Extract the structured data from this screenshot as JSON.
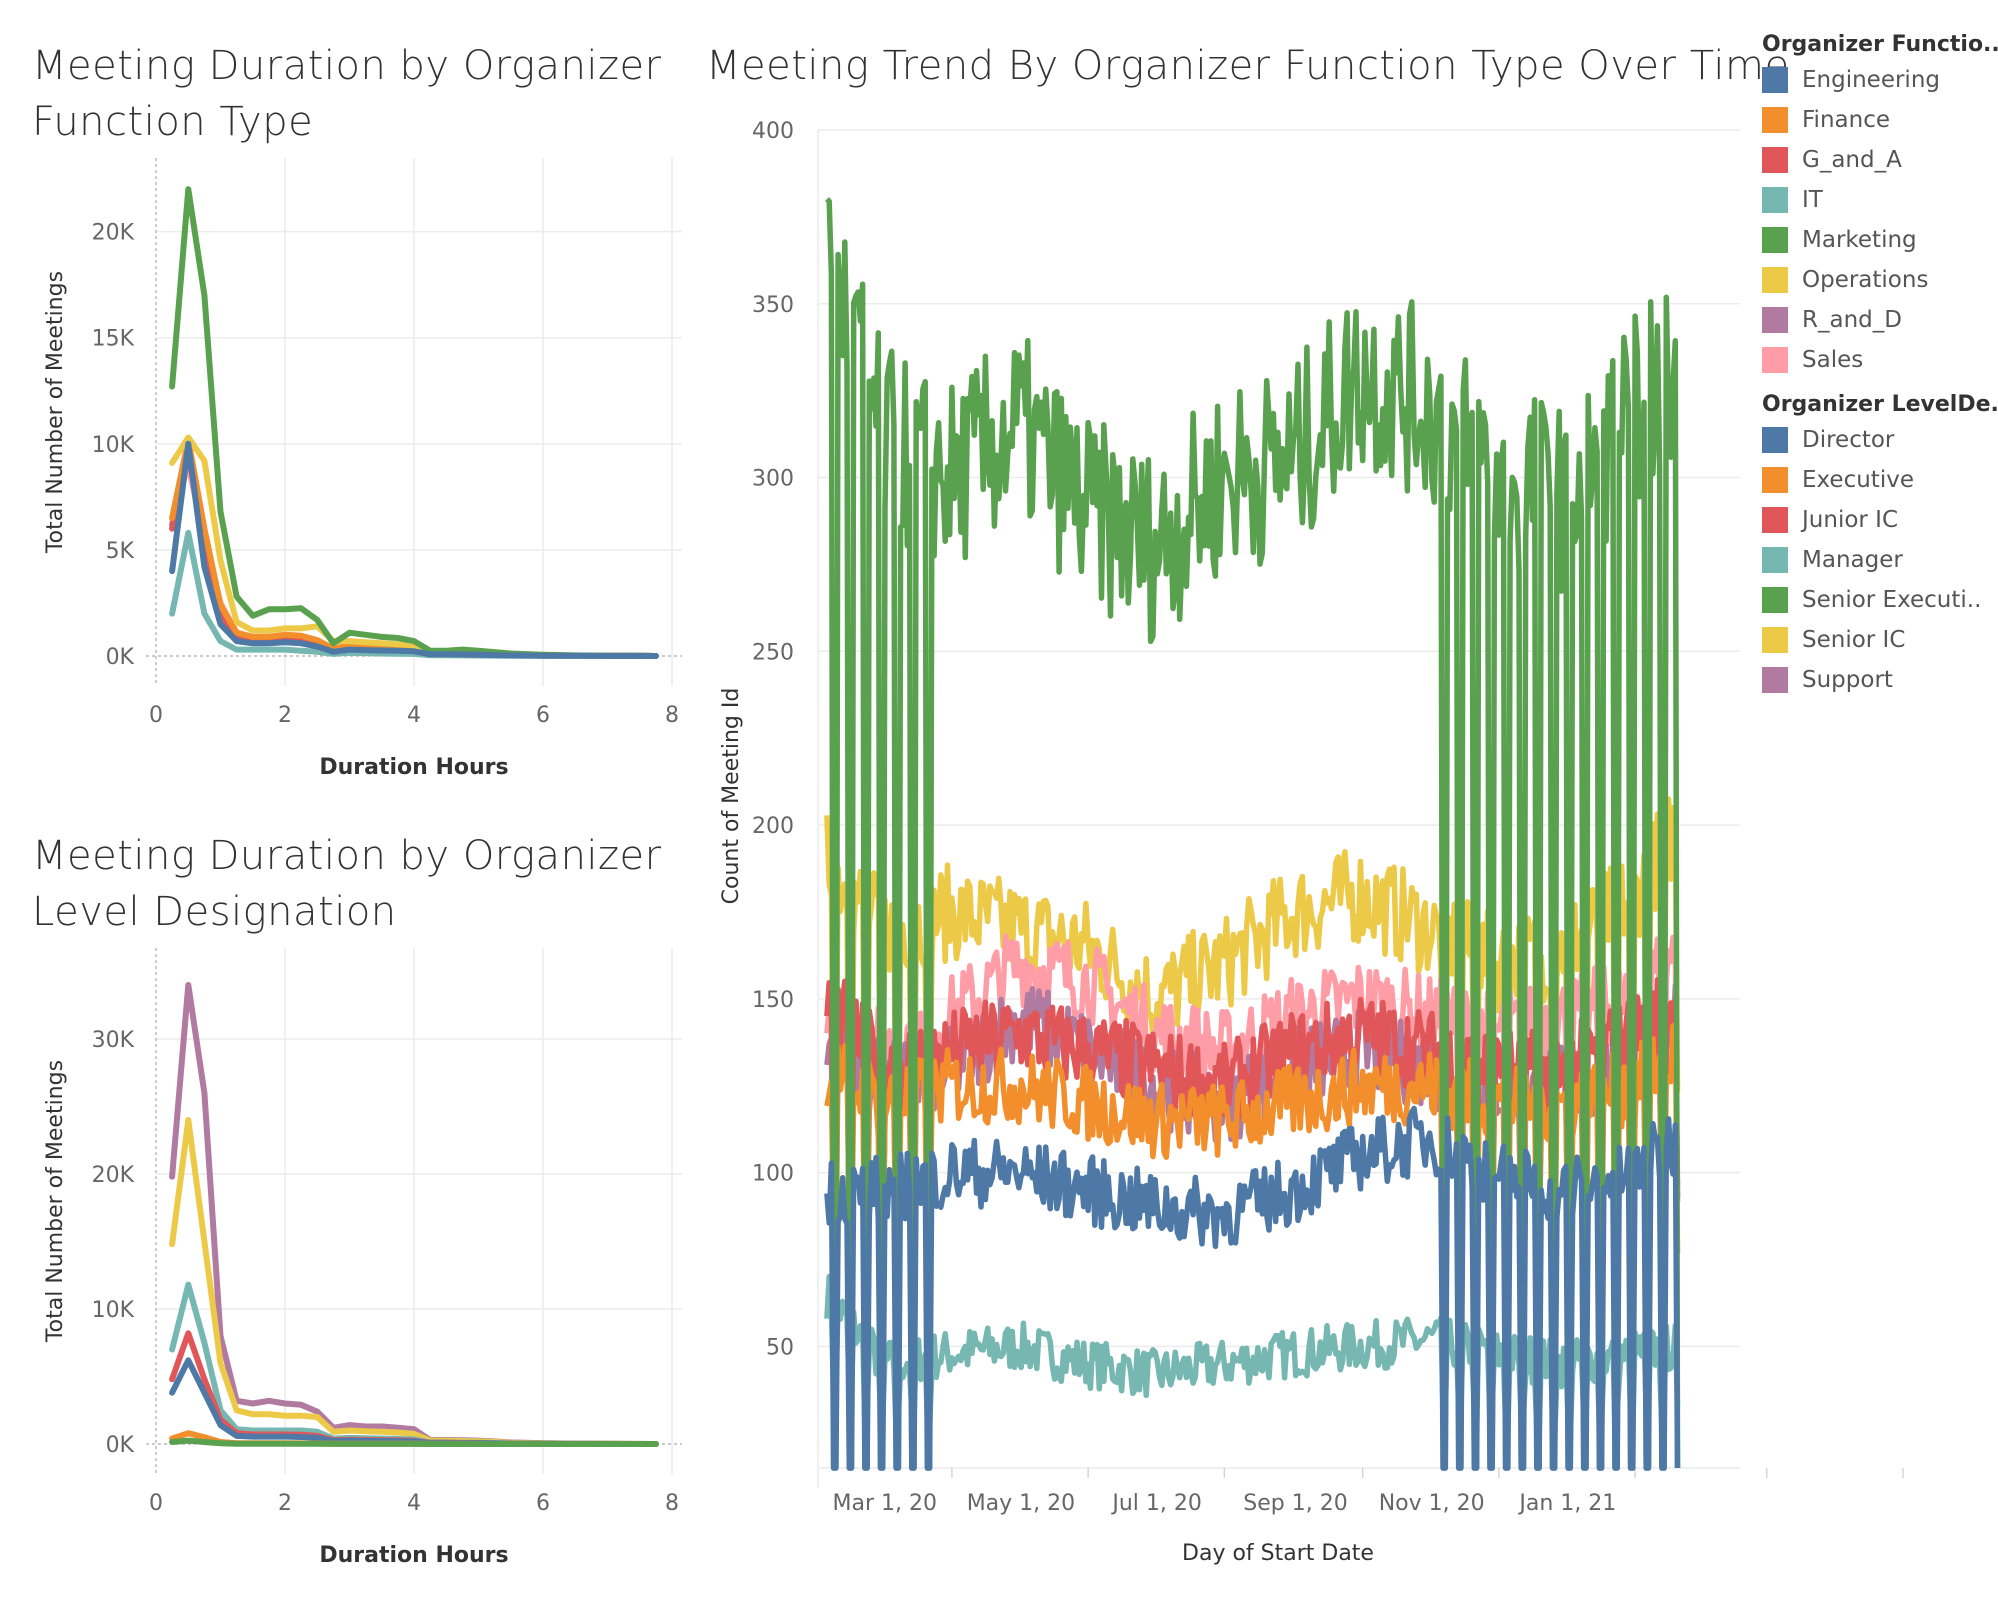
{
  "titles": {
    "function_chart": "Meeting Duration by Organizer Function Type",
    "level_chart": "Meeting Duration by Organizer Level Designation",
    "trend_chart": "Meeting Trend By Organizer Function Type Over Time"
  },
  "legends": {
    "function": {
      "title": "Organizer Functio..",
      "items": [
        {
          "label": "Engineering",
          "color": "#4e79a7"
        },
        {
          "label": "Finance",
          "color": "#f28e2b"
        },
        {
          "label": "G_and_A",
          "color": "#e15759"
        },
        {
          "label": "IT",
          "color": "#76b7b2"
        },
        {
          "label": "Marketing",
          "color": "#59a14f"
        },
        {
          "label": "Operations",
          "color": "#edc948"
        },
        {
          "label": "R_and_D",
          "color": "#b07aa1"
        },
        {
          "label": "Sales",
          "color": "#ff9da7"
        }
      ]
    },
    "level": {
      "title": "Organizer LevelDe..",
      "items": [
        {
          "label": "Director",
          "color": "#4e79a7"
        },
        {
          "label": "Executive",
          "color": "#f28e2b"
        },
        {
          "label": "Junior IC",
          "color": "#e15759"
        },
        {
          "label": "Manager",
          "color": "#76b7b2"
        },
        {
          "label": "Senior Executi..",
          "color": "#59a14f"
        },
        {
          "label": "Senior IC",
          "color": "#edc948"
        },
        {
          "label": "Support",
          "color": "#b07aa1"
        }
      ]
    }
  },
  "chart_data": [
    {
      "type": "line",
      "title": "Meeting Duration by Organizer Function Type",
      "xlabel": "Duration Hours",
      "ylabel": "Total Number of Meetings",
      "xlim": [
        0,
        8
      ],
      "ylim": [
        0,
        23000
      ],
      "x_ticks": [
        0,
        2,
        4,
        6,
        8
      ],
      "x_tick_labels": [
        "0",
        "2",
        "4",
        "6",
        "8"
      ],
      "y_ticks": [
        0,
        5000,
        10000,
        15000,
        20000
      ],
      "y_tick_labels": [
        "0K",
        "5K",
        "10K",
        "15K",
        "20K"
      ],
      "grid": true,
      "x": [
        0.25,
        0.5,
        0.75,
        1,
        1.25,
        1.5,
        1.75,
        2,
        2.25,
        2.5,
        2.75,
        3,
        3.25,
        3.5,
        3.75,
        4,
        4.25,
        4.5,
        4.75,
        5,
        5.5,
        6,
        6.5,
        7,
        7.5,
        7.75
      ],
      "series": [
        {
          "name": "Sales",
          "color": "#ff9da7",
          "values": [
            6500,
            9000,
            5500,
            2500,
            1100,
            900,
            900,
            1000,
            900,
            700,
            350,
            500,
            450,
            420,
            400,
            350,
            150,
            150,
            120,
            100,
            60,
            30,
            20,
            10,
            5,
            0
          ]
        },
        {
          "name": "R_and_D",
          "color": "#b07aa1",
          "values": [
            6200,
            9800,
            5800,
            2200,
            1000,
            800,
            800,
            850,
            800,
            650,
            300,
            420,
            400,
            380,
            350,
            300,
            120,
            120,
            100,
            80,
            50,
            30,
            15,
            10,
            5,
            0
          ]
        },
        {
          "name": "G_and_A",
          "color": "#e15759",
          "values": [
            6000,
            9500,
            5500,
            2000,
            900,
            700,
            700,
            800,
            750,
            600,
            280,
            400,
            380,
            350,
            330,
            280,
            110,
            110,
            90,
            70,
            40,
            20,
            10,
            5,
            3,
            0
          ]
        },
        {
          "name": "Finance",
          "color": "#f28e2b",
          "values": [
            6500,
            10200,
            6000,
            2400,
            1100,
            900,
            900,
            1000,
            950,
            750,
            350,
            500,
            470,
            440,
            420,
            360,
            140,
            140,
            110,
            90,
            50,
            25,
            15,
            10,
            5,
            0
          ]
        },
        {
          "name": "IT",
          "color": "#76b7b2",
          "values": [
            2000,
            5800,
            2000,
            700,
            300,
            300,
            300,
            300,
            250,
            200,
            100,
            150,
            130,
            120,
            110,
            100,
            40,
            40,
            30,
            25,
            15,
            10,
            5,
            3,
            2,
            0
          ]
        },
        {
          "name": "Operations",
          "color": "#edc948",
          "values": [
            9100,
            10300,
            9200,
            4500,
            1600,
            1200,
            1200,
            1300,
            1300,
            1400,
            700,
            700,
            650,
            600,
            550,
            500,
            200,
            200,
            180,
            150,
            80,
            40,
            20,
            10,
            5,
            0
          ]
        },
        {
          "name": "Marketing",
          "color": "#59a14f",
          "values": [
            12700,
            22000,
            17000,
            6800,
            2800,
            1900,
            2200,
            2200,
            2250,
            1700,
            600,
            1100,
            1000,
            900,
            850,
            700,
            250,
            250,
            300,
            250,
            120,
            60,
            30,
            15,
            8,
            0
          ]
        },
        {
          "name": "Engineering",
          "color": "#4e79a7",
          "values": [
            4000,
            10000,
            4200,
            1500,
            700,
            600,
            600,
            650,
            600,
            450,
            200,
            300,
            280,
            260,
            250,
            220,
            80,
            80,
            70,
            60,
            30,
            15,
            8,
            5,
            3,
            0
          ]
        }
      ]
    },
    {
      "type": "line",
      "title": "Meeting Duration by Organizer Level Designation",
      "xlabel": "Duration Hours",
      "ylabel": "Total Number of Meetings",
      "xlim": [
        0,
        8
      ],
      "ylim": [
        0,
        36000
      ],
      "x_ticks": [
        0,
        2,
        4,
        6,
        8
      ],
      "x_tick_labels": [
        "0",
        "2",
        "4",
        "6",
        "8"
      ],
      "y_ticks": [
        0,
        10000,
        20000,
        30000
      ],
      "y_tick_labels": [
        "0K",
        "10K",
        "20K",
        "30K"
      ],
      "grid": true,
      "x": [
        0.25,
        0.5,
        0.75,
        1,
        1.25,
        1.5,
        1.75,
        2,
        2.25,
        2.5,
        2.75,
        3,
        3.25,
        3.5,
        3.75,
        4,
        4.25,
        4.5,
        4.75,
        5,
        5.5,
        6,
        6.5,
        7,
        7.5,
        7.75
      ],
      "series": [
        {
          "name": "Support",
          "color": "#b07aa1",
          "values": [
            19800,
            34000,
            26000,
            8000,
            3200,
            3000,
            3200,
            3000,
            2900,
            2400,
            1200,
            1400,
            1300,
            1300,
            1200,
            1100,
            300,
            300,
            280,
            250,
            120,
            60,
            30,
            15,
            8,
            0
          ]
        },
        {
          "name": "Senior IC",
          "color": "#edc948",
          "values": [
            14800,
            24000,
            15000,
            6000,
            2500,
            2200,
            2200,
            2100,
            2100,
            2000,
            900,
            1000,
            950,
            900,
            850,
            750,
            250,
            250,
            220,
            200,
            100,
            50,
            25,
            12,
            6,
            0
          ]
        },
        {
          "name": "Manager",
          "color": "#76b7b2",
          "values": [
            7000,
            11800,
            7500,
            2500,
            1100,
            1000,
            1000,
            1000,
            1000,
            900,
            400,
            450,
            420,
            400,
            380,
            330,
            120,
            120,
            100,
            90,
            45,
            20,
            10,
            5,
            3,
            0
          ]
        },
        {
          "name": "Junior IC",
          "color": "#e15759",
          "values": [
            4800,
            8200,
            4800,
            1800,
            800,
            700,
            700,
            700,
            680,
            600,
            280,
            320,
            300,
            280,
            270,
            240,
            90,
            90,
            75,
            65,
            30,
            15,
            8,
            4,
            2,
            0
          ]
        },
        {
          "name": "Director",
          "color": "#4e79a7",
          "values": [
            3800,
            6200,
            3800,
            1400,
            600,
            550,
            550,
            550,
            520,
            460,
            220,
            250,
            230,
            220,
            210,
            190,
            70,
            70,
            60,
            50,
            25,
            12,
            6,
            3,
            2,
            0
          ]
        },
        {
          "name": "Executive",
          "color": "#f28e2b",
          "values": [
            400,
            800,
            500,
            150,
            60,
            50,
            50,
            50,
            45,
            40,
            20,
            25,
            22,
            20,
            18,
            15,
            5,
            5,
            4,
            3,
            2,
            1,
            0,
            0,
            0,
            0
          ]
        },
        {
          "name": "Senior Executi..",
          "color": "#59a14f",
          "values": [
            150,
            250,
            150,
            60,
            25,
            20,
            20,
            20,
            18,
            15,
            8,
            10,
            9,
            8,
            7,
            6,
            2,
            2,
            2,
            1,
            1,
            0,
            0,
            0,
            0,
            0
          ]
        }
      ]
    },
    {
      "type": "line",
      "title": "Meeting Trend By Organizer Function Type Over Time",
      "xlabel": "Day of Start Date",
      "ylabel": "Count of Meeting Id",
      "x_range": [
        "2020-02-01",
        "2021-03-20"
      ],
      "ylim": [
        15,
        400
      ],
      "x_ticks": [
        "2020-03-01",
        "2020-05-01",
        "2020-07-01",
        "2020-09-01",
        "2020-11-01",
        "2021-01-01"
      ],
      "x_tick_labels": [
        "Mar 1, 20",
        "May 1, 20",
        "Jul 1, 20",
        "Sep 1, 20",
        "Nov 1, 20",
        "Jan 1, 21"
      ],
      "y_ticks": [
        50,
        100,
        150,
        200,
        250,
        300,
        350,
        400
      ],
      "y_tick_labels": [
        "50",
        "100",
        "150",
        "200",
        "250",
        "300",
        "350",
        "400"
      ],
      "grid": true,
      "x_dates": [
        "2020-02-05",
        "2020-03-01",
        "2020-04-01",
        "2020-05-01",
        "2020-06-01",
        "2020-07-01",
        "2020-08-01",
        "2020-09-01",
        "2020-10-01",
        "2020-11-01",
        "2020-12-01",
        "2021-01-01",
        "2021-02-01",
        "2021-02-20"
      ],
      "series": [
        {
          "name": "Marketing",
          "color": "#59a14f",
          "weekday_values": [
            370,
            310,
            300,
            315,
            290,
            280,
            300,
            305,
            330,
            320,
            300,
            295,
            320,
            330
          ],
          "weekend_low": 15,
          "weekend_days_start": "2020-02-05",
          "weekend_days_end": "2020-03-25",
          "weekend_days_start_2": "2020-11-01",
          "weekend_days_end_2": "2021-02-20"
        },
        {
          "name": "Operations",
          "color": "#edc948",
          "weekday_values": [
            190,
            170,
            175,
            170,
            165,
            150,
            160,
            175,
            180,
            170,
            160,
            165,
            180,
            200
          ]
        },
        {
          "name": "Sales",
          "color": "#ff9da7",
          "weekday_values": [
            150,
            135,
            145,
            160,
            155,
            140,
            135,
            145,
            150,
            145,
            140,
            145,
            150,
            165
          ]
        },
        {
          "name": "G_and_A",
          "color": "#e15759",
          "weekday_values": [
            150,
            130,
            135,
            140,
            135,
            130,
            125,
            135,
            140,
            135,
            130,
            130,
            140,
            150
          ]
        },
        {
          "name": "R_and_D",
          "color": "#b07aa1",
          "weekday_values": [
            140,
            125,
            130,
            145,
            135,
            125,
            120,
            130,
            135,
            130,
            125,
            125,
            130,
            145
          ]
        },
        {
          "name": "Finance",
          "color": "#f28e2b",
          "weekday_values": [
            130,
            120,
            125,
            125,
            120,
            115,
            115,
            120,
            125,
            125,
            120,
            120,
            125,
            135
          ]
        },
        {
          "name": "Engineering",
          "color": "#4e79a7",
          "weekday_values": [
            95,
            95,
            100,
            100,
            95,
            90,
            88,
            95,
            105,
            110,
            100,
            95,
            100,
            110
          ],
          "weekend_low": 15
        },
        {
          "name": "IT",
          "color": "#76b7b2",
          "weekday_values": [
            65,
            45,
            48,
            50,
            45,
            42,
            45,
            48,
            50,
            52,
            48,
            45,
            48,
            50
          ]
        }
      ]
    }
  ]
}
